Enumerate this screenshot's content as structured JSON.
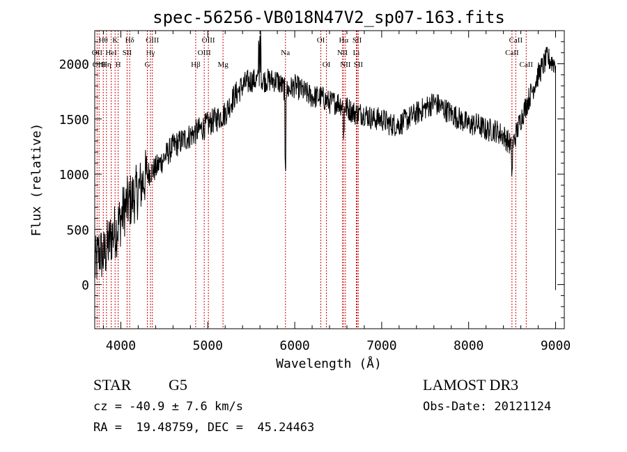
{
  "chart_data": {
    "type": "line",
    "title": "spec-56256-VB018N47V2_sp07-163.fits",
    "xlabel": "Wavelength (Å)",
    "ylabel": "Flux (relative)",
    "xlim": [
      3700,
      9100
    ],
    "ylim": [
      -400,
      2300
    ],
    "xticks": [
      4000,
      5000,
      6000,
      7000,
      8000,
      9000
    ],
    "yticks": [
      0,
      500,
      1000,
      1500,
      2000
    ],
    "grid": false,
    "series": [
      {
        "name": "flux",
        "x": [
          3700,
          3750,
          3800,
          3850,
          3900,
          3950,
          4000,
          4050,
          4100,
          4150,
          4200,
          4300,
          4400,
          4500,
          4600,
          4700,
          4800,
          4900,
          5000,
          5100,
          5200,
          5300,
          5400,
          5500,
          5600,
          5700,
          5800,
          5900,
          6000,
          6100,
          6200,
          6300,
          6400,
          6500,
          6600,
          6700,
          6800,
          6900,
          7000,
          7100,
          7200,
          7300,
          7400,
          7500,
          7600,
          7700,
          7800,
          7900,
          8000,
          8100,
          8200,
          8300,
          8400,
          8500,
          8600,
          8700,
          8800,
          8900,
          9000
        ],
        "y": [
          150,
          300,
          250,
          350,
          450,
          500,
          600,
          700,
          750,
          800,
          850,
          1000,
          1050,
          1150,
          1250,
          1300,
          1350,
          1400,
          1450,
          1500,
          1550,
          1700,
          1800,
          1850,
          1850,
          1850,
          1850,
          1750,
          1800,
          1750,
          1700,
          1700,
          1650,
          1650,
          1600,
          1550,
          1550,
          1500,
          1500,
          1450,
          1450,
          1500,
          1550,
          1600,
          1650,
          1600,
          1550,
          1500,
          1450,
          1450,
          1400,
          1400,
          1350,
          1250,
          1500,
          1700,
          1900,
          2050,
          2000
        ]
      }
    ],
    "spectral_lines": [
      {
        "label": "Hθ",
        "wavelength": 3798,
        "row": 1
      },
      {
        "label": "OII",
        "wavelength": 3727,
        "row": 2
      },
      {
        "label": "OIII",
        "wavelength": 3750,
        "row": 3
      },
      {
        "label": "Hη",
        "wavelength": 3835,
        "row": 3
      },
      {
        "label": "HeI",
        "wavelength": 3889,
        "row": 2
      },
      {
        "label": "K",
        "wavelength": 3934,
        "row": 1
      },
      {
        "label": "SII",
        "wavelength": 4072,
        "row": 2
      },
      {
        "label": "H",
        "wavelength": 3969,
        "row": 3
      },
      {
        "label": "Hδ",
        "wavelength": 4102,
        "row": 1
      },
      {
        "label": "OIII",
        "wavelength": 4363,
        "row": 1
      },
      {
        "label": "Hγ",
        "wavelength": 4341,
        "row": 2
      },
      {
        "label": "G",
        "wavelength": 4305,
        "row": 3
      },
      {
        "label": "Hβ",
        "wavelength": 4861,
        "row": 3
      },
      {
        "label": "OIII",
        "wavelength": 5007,
        "row": 1
      },
      {
        "label": "OIII",
        "wavelength": 4959,
        "row": 2
      },
      {
        "label": "Mg",
        "wavelength": 5175,
        "row": 3
      },
      {
        "label": "Na",
        "wavelength": 5893,
        "row": 2
      },
      {
        "label": "OI",
        "wavelength": 6300,
        "row": 1
      },
      {
        "label": "OI",
        "wavelength": 6364,
        "row": 3
      },
      {
        "label": "Hα",
        "wavelength": 6563,
        "row": 1
      },
      {
        "label": "NII",
        "wavelength": 6548,
        "row": 2
      },
      {
        "label": "NII",
        "wavelength": 6583,
        "row": 3
      },
      {
        "label": "SII",
        "wavelength": 6717,
        "row": 1
      },
      {
        "label": "Li",
        "wavelength": 6708,
        "row": 2
      },
      {
        "label": "SII",
        "wavelength": 6731,
        "row": 3
      },
      {
        "label": "CaII",
        "wavelength": 8542,
        "row": 1
      },
      {
        "label": "CaII",
        "wavelength": 8498,
        "row": 2
      },
      {
        "label": "CaII",
        "wavelength": 8662,
        "row": 3
      }
    ]
  },
  "info": {
    "object_class": "STAR",
    "subclass": "G5",
    "survey": "LAMOST DR3",
    "cz": "cz = -40.9 ± 7.6 km/s",
    "obs_date": "Obs-Date: 20121124",
    "coords": "RA =  19.48759, DEC =  45.24463"
  },
  "colors": {
    "line": "#000000",
    "marker": "#cc0000"
  }
}
